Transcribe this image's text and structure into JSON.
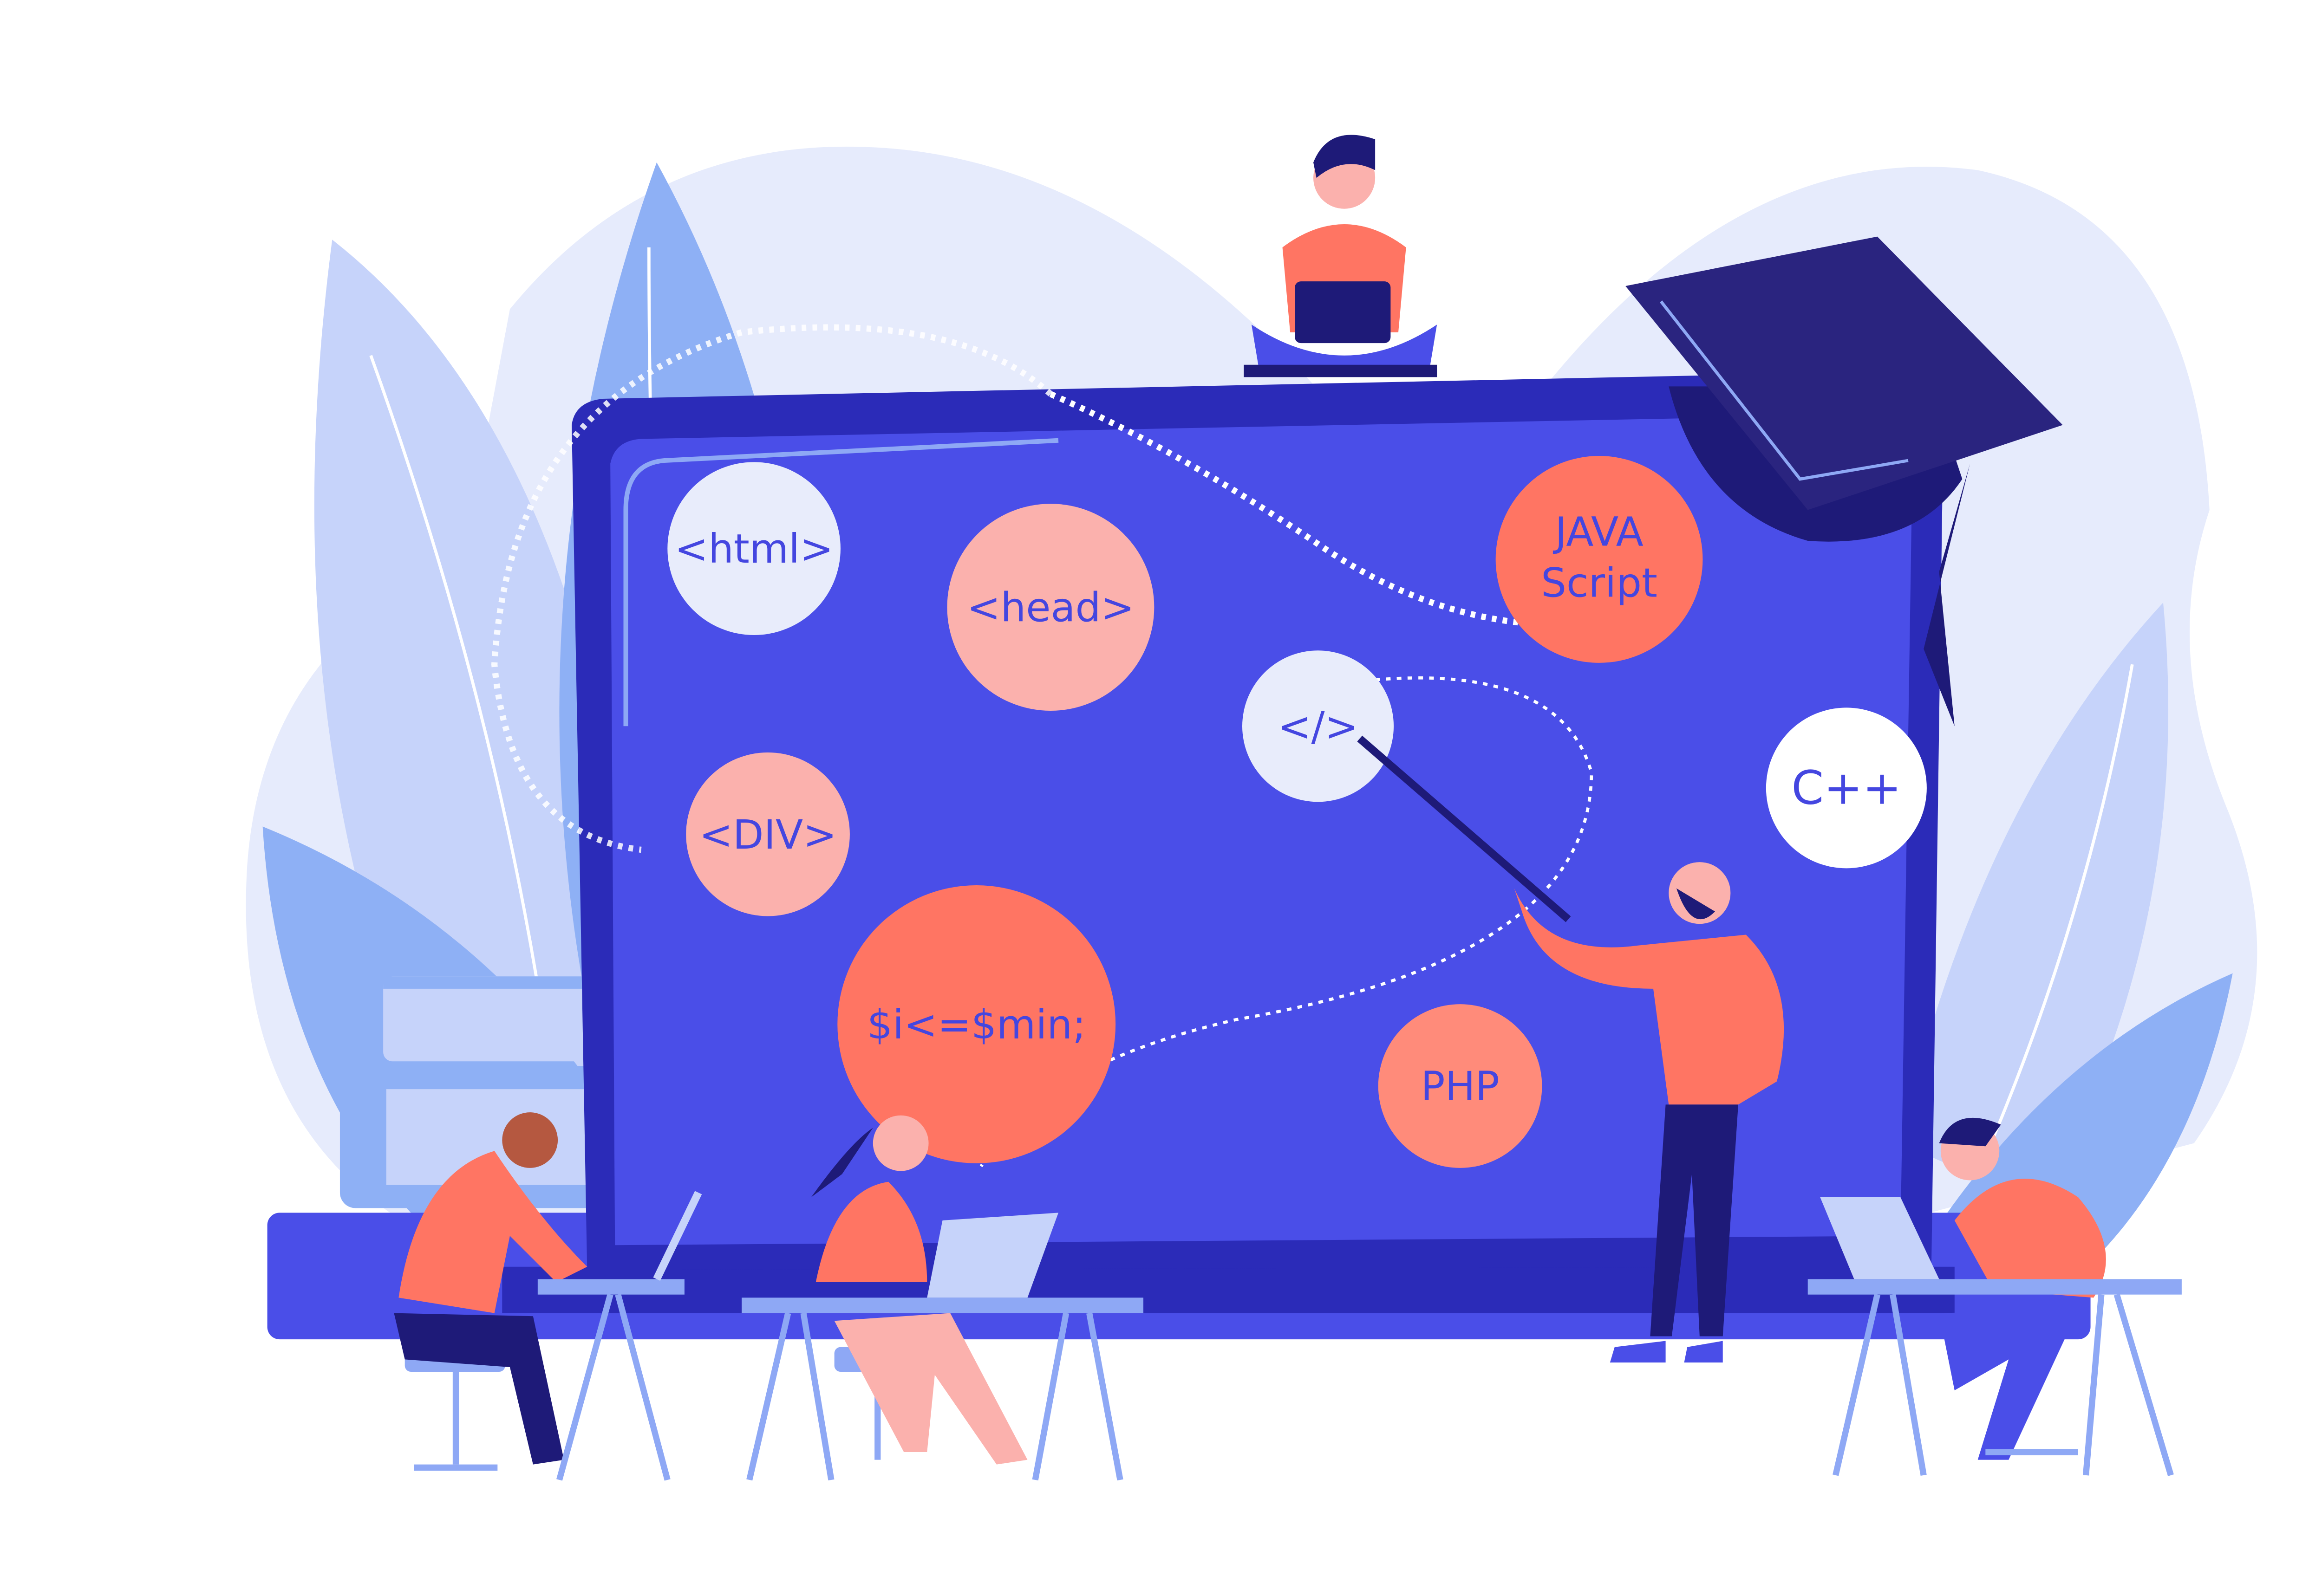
{
  "illustration": {
    "bubbles": [
      {
        "id": "html",
        "label": "<html>",
        "fill": "#e8ecfb"
      },
      {
        "id": "head",
        "label": "<head>",
        "fill": "#fbb1ad"
      },
      {
        "id": "javascript",
        "label_line1": "JAVA",
        "label_line2": "Script",
        "fill": "#ff7563"
      },
      {
        "id": "code-tag",
        "label": "</>",
        "fill": "#e8ecfb"
      },
      {
        "id": "div",
        "label": "<DIV>",
        "fill": "#fbb1ad"
      },
      {
        "id": "cpp",
        "label": "C++",
        "fill": "#ffffff"
      },
      {
        "id": "php-var",
        "label": "$i<=$min;",
        "fill": "#ff7563"
      },
      {
        "id": "php",
        "label": "PHP",
        "fill": "#ff8b7a"
      }
    ],
    "colors": {
      "screen": "#4a4ee8",
      "laptop_frame": "#2b2bb8",
      "text": "#4446e0",
      "person_shirt": "#ff7563",
      "dark_navy": "#1e1a78",
      "leaf_light": "#c6d3fa",
      "leaf_mid": "#8eb0f5",
      "blob": "#e6ebfc",
      "desk": "#8ea8f5"
    },
    "icons": [
      "graduation-cap-icon",
      "laptop-icon",
      "pointer-stick-icon",
      "books-icon"
    ]
  }
}
